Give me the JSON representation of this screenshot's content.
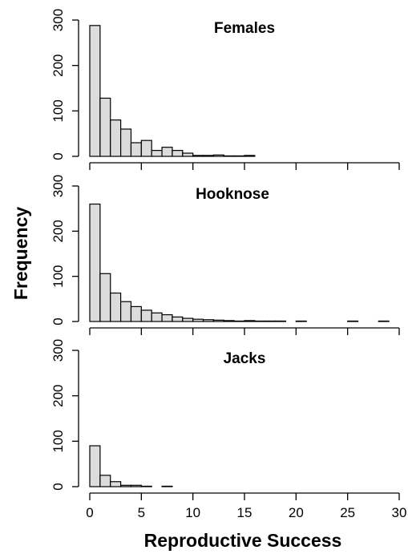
{
  "chart_data": {
    "type": "bar",
    "shared": {
      "xlabel": "Reproductive Success",
      "ylabel": "Frequency",
      "x_ticks": [
        0,
        5,
        10,
        15,
        20,
        25,
        30
      ],
      "x_ticks_text": [
        "0",
        "5",
        "10",
        "15",
        "20",
        "25",
        "30"
      ],
      "y_ticks": [
        0,
        100,
        200,
        300
      ],
      "y_ticks_text": [
        "0",
        "100",
        "200",
        "300"
      ],
      "xlim": [
        0,
        30
      ],
      "ylim": [
        0,
        300
      ],
      "bin_width": 1,
      "bar_fill": "#dcdcdc",
      "bar_stroke": "#000000",
      "grid": false
    },
    "panels": [
      {
        "title": "Females",
        "bin_starts": [
          0,
          1,
          2,
          3,
          4,
          5,
          6,
          7,
          8,
          9,
          10,
          11,
          12,
          13,
          14,
          15,
          16,
          17,
          18,
          19,
          20,
          21,
          22,
          23,
          24,
          25,
          26,
          27,
          28,
          29
        ],
        "values": [
          288,
          128,
          80,
          60,
          30,
          35,
          13,
          20,
          13,
          7,
          2,
          2,
          3,
          1,
          1,
          2,
          0,
          0,
          0,
          0,
          0,
          0,
          0,
          0,
          0,
          0,
          0,
          0,
          0,
          0
        ]
      },
      {
        "title": "Hooknose",
        "bin_starts": [
          0,
          1,
          2,
          3,
          4,
          5,
          6,
          7,
          8,
          9,
          10,
          11,
          12,
          13,
          14,
          15,
          16,
          17,
          18,
          19,
          20,
          21,
          22,
          23,
          24,
          25,
          26,
          27,
          28,
          29
        ],
        "values": [
          260,
          106,
          63,
          44,
          33,
          25,
          19,
          15,
          10,
          7,
          5,
          4,
          3,
          2,
          1,
          2,
          1,
          1,
          1,
          0,
          1,
          0,
          0,
          0,
          0,
          1,
          0,
          0,
          1,
          0
        ]
      },
      {
        "title": "Jacks",
        "bin_starts": [
          0,
          1,
          2,
          3,
          4,
          5,
          6,
          7,
          8,
          9,
          10,
          11,
          12,
          13,
          14,
          15,
          16,
          17,
          18,
          19,
          20,
          21,
          22,
          23,
          24,
          25,
          26,
          27,
          28,
          29
        ],
        "values": [
          90,
          25,
          11,
          3,
          3,
          1,
          0,
          1,
          0,
          0,
          0,
          0,
          0,
          0,
          0,
          0,
          0,
          0,
          0,
          0,
          0,
          0,
          0,
          0,
          0,
          0,
          0,
          0,
          0,
          0
        ]
      }
    ]
  }
}
